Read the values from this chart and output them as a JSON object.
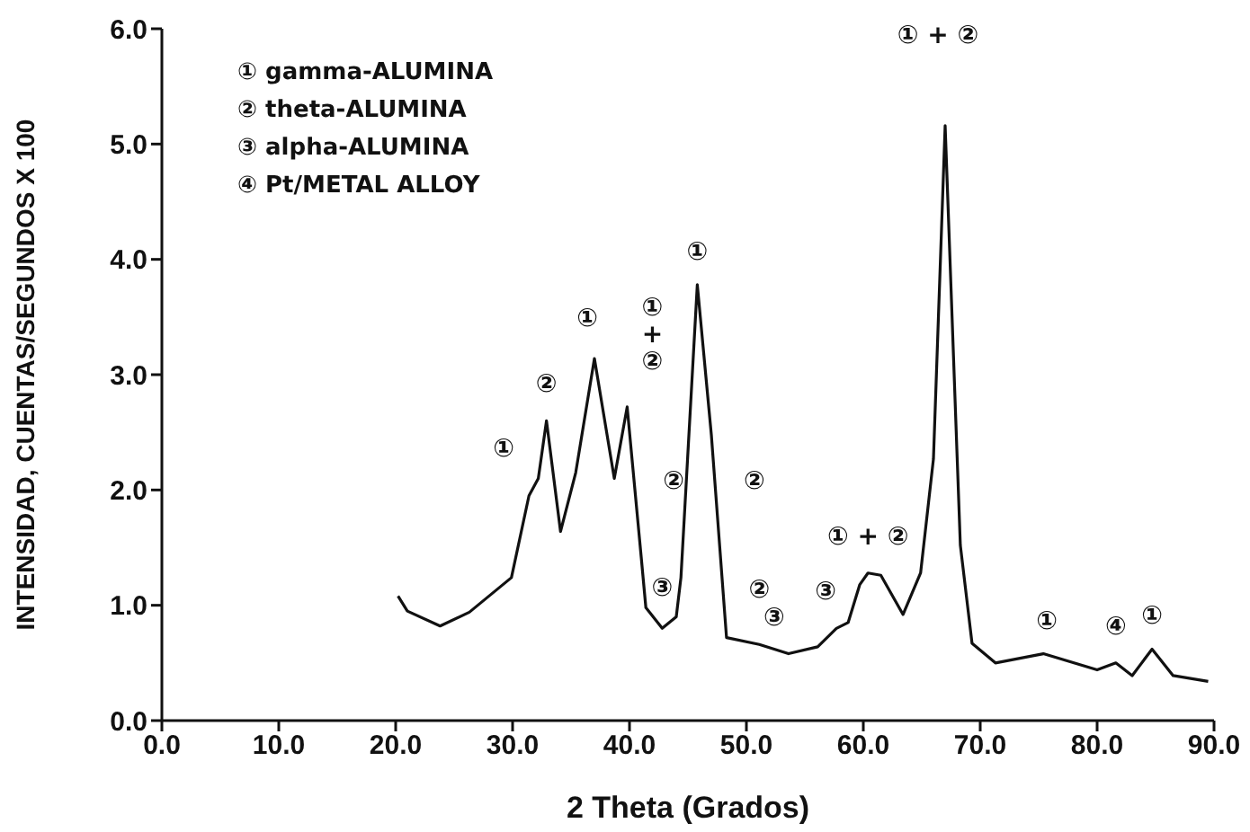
{
  "chart_data": {
    "type": "line",
    "xlabel": "2 Theta (Grados)",
    "ylabel": "INTENSIDAD, CUENTAS/SEGUNDOS X 100",
    "xlim": [
      0,
      90
    ],
    "xticks": [
      {
        "value": 0,
        "label": "0.0"
      },
      {
        "value": 10,
        "label": "10.0"
      },
      {
        "value": 20,
        "label": "20.0"
      },
      {
        "value": 30,
        "label": "30.0"
      },
      {
        "value": 40,
        "label": "40.0"
      },
      {
        "value": 50,
        "label": "50.0"
      },
      {
        "value": 60,
        "label": "60.0"
      },
      {
        "value": 70,
        "label": "70.0"
      },
      {
        "value": 80,
        "label": "80.0"
      },
      {
        "value": 90,
        "label": "90.0"
      }
    ],
    "ylim": [
      0,
      6
    ],
    "yticks": [
      {
        "value": 0,
        "label": "0.0"
      },
      {
        "value": 1,
        "label": "1.0"
      },
      {
        "value": 2,
        "label": "2.0"
      },
      {
        "value": 3,
        "label": "3.0"
      },
      {
        "value": 4,
        "label": "4.0"
      },
      {
        "value": 5,
        "label": "5.0"
      },
      {
        "value": 6,
        "label": "6.0"
      }
    ],
    "marker": "none",
    "line_style": "solid",
    "series": [
      {
        "color": "#111111",
        "x": [
          20.2,
          21.0,
          23.8,
          26.3,
          29.9,
          31.4,
          32.2,
          32.9,
          34.1,
          35.4,
          37.0,
          38.7,
          39.8,
          41.0,
          41.4,
          42.8,
          44.0,
          44.4,
          45.8,
          47.0,
          48.3,
          51.1,
          53.6,
          56.1,
          57.7,
          58.7,
          59.7,
          60.4,
          61.5,
          63.4,
          64.9,
          66.0,
          67.0,
          68.3,
          69.3,
          71.3,
          75.4,
          80.0,
          81.6,
          83.0,
          84.7,
          86.5,
          89.5
        ],
        "values": [
          1.08,
          0.95,
          0.82,
          0.94,
          1.24,
          1.95,
          2.1,
          2.6,
          1.64,
          2.15,
          3.14,
          2.1,
          2.72,
          1.42,
          0.98,
          0.8,
          0.9,
          1.24,
          3.78,
          2.48,
          0.72,
          0.66,
          0.58,
          0.64,
          0.8,
          0.85,
          1.18,
          1.28,
          1.26,
          0.92,
          1.28,
          2.27,
          5.16,
          1.52,
          0.67,
          0.5,
          0.58,
          0.44,
          0.5,
          0.39,
          0.62,
          0.39,
          0.34
        ]
      }
    ],
    "annotations": [
      "① gamma-ALUMINA",
      "② theta-ALUMINA",
      "③ alpha-ALUMINA",
      "④ Pt/METAL ALLOY",
      {
        "text": "①",
        "x": 31.4,
        "y": 1.95
      },
      {
        "text": "②",
        "x": 32.9,
        "y": 2.6
      },
      {
        "text": "①",
        "x": 37.0,
        "y": 3.14
      },
      {
        "text": "① + ②",
        "x": 39.8,
        "y": 2.72
      },
      {
        "text": "②",
        "x": 40.4,
        "y": 2.07
      },
      {
        "text": "③",
        "x": 42.8,
        "y": 0.8
      },
      {
        "text": "①",
        "x": 45.8,
        "y": 3.78
      },
      {
        "text": "②",
        "x": 47.3,
        "y": 2.07
      },
      {
        "text": "②",
        "x": 51.1,
        "y": 0.66
      },
      {
        "text": "③",
        "x": 53.6,
        "y": 0.58
      },
      {
        "text": "③",
        "x": 57.7,
        "y": 0.8
      },
      {
        "text": "① + ②",
        "x": 60.4,
        "y": 1.28
      },
      {
        "text": "① + ②",
        "x": 67.0,
        "y": 5.16
      },
      {
        "text": "①",
        "x": 75.4,
        "y": 0.58
      },
      {
        "text": "④",
        "x": 81.6,
        "y": 0.5
      },
      {
        "text": "①",
        "x": 84.7,
        "y": 0.62
      }
    ]
  }
}
